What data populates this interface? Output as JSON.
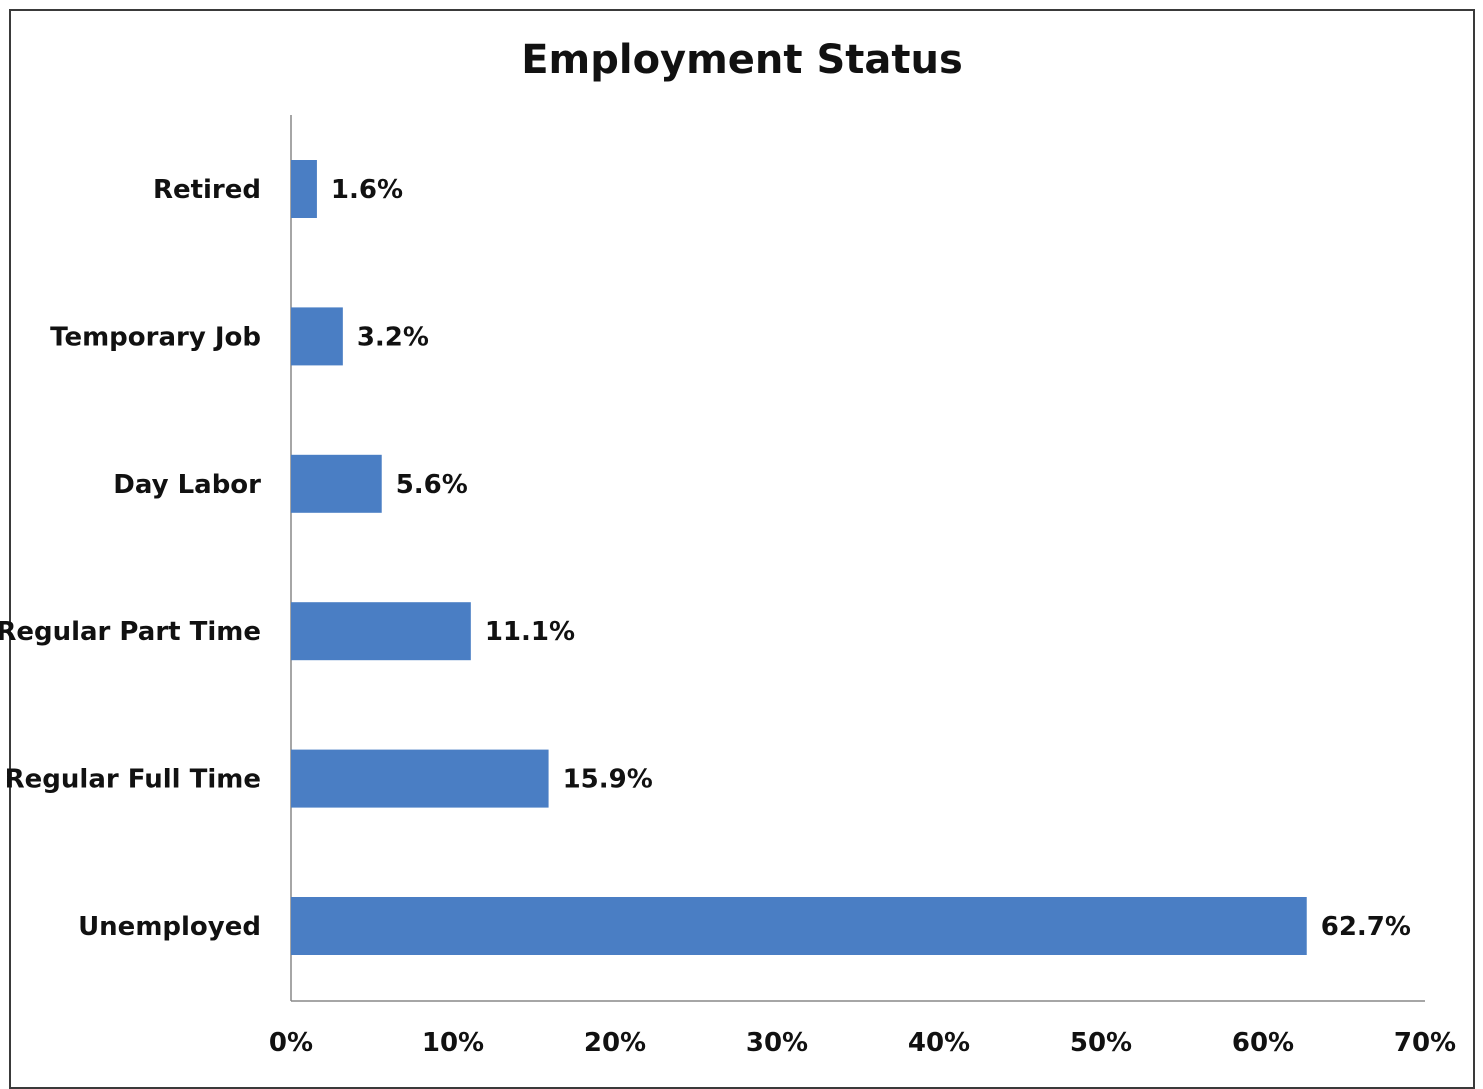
{
  "chart_data": {
    "type": "bar",
    "orientation": "horizontal",
    "title": "Employment Status",
    "categories": [
      "Retired",
      "Temporary Job",
      "Day Labor",
      "Regular Part Time",
      "Regular Full Time",
      "Unemployed"
    ],
    "values": [
      1.6,
      3.2,
      5.6,
      11.1,
      15.9,
      62.7
    ],
    "data_labels": [
      "1.6%",
      "3.2%",
      "5.6%",
      "11.1%",
      "15.9%",
      "62.7%"
    ],
    "x_ticks": [
      "0%",
      "10%",
      "20%",
      "30%",
      "40%",
      "50%",
      "60%",
      "70%"
    ],
    "xlim": [
      0,
      70
    ],
    "xlabel": "",
    "ylabel": "",
    "grid": false,
    "legend": "none",
    "bar_color": "#4a7ec4"
  }
}
